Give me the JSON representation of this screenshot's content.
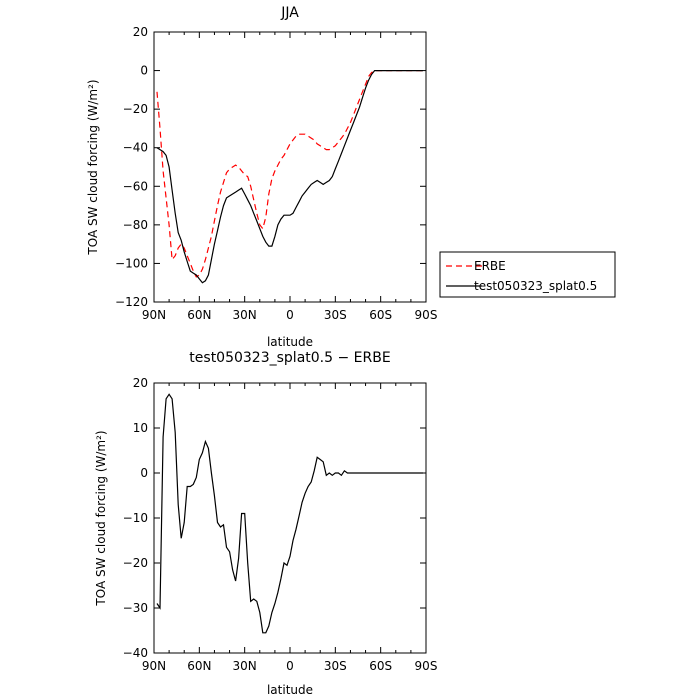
{
  "chart_data": [
    {
      "type": "line",
      "title": "JJA",
      "xlabel": "latitude",
      "ylabel": "TOA SW cloud forcing (W/m²)",
      "xlim": [
        90,
        -90
      ],
      "ylim": [
        -120,
        20
      ],
      "xticks": [
        90,
        60,
        30,
        0,
        -30,
        -60,
        -90
      ],
      "xtick_labels": [
        "90N",
        "60N",
        "30N",
        "0",
        "30S",
        "60S",
        "90S"
      ],
      "yticks": [
        -120,
        -100,
        -80,
        -60,
        -40,
        -20,
        0,
        20
      ],
      "ytick_labels": [
        "−120",
        "−100",
        "−80",
        "−60",
        "−40",
        "−20",
        "0",
        "20"
      ],
      "legend": {
        "placement": "right"
      },
      "series": [
        {
          "name": "ERBE",
          "color": "#ff0000",
          "dash": true,
          "x": [
            88,
            86,
            84,
            82,
            80,
            78,
            76,
            74,
            72,
            70,
            68,
            66,
            64,
            62,
            60,
            58,
            56,
            54,
            52,
            50,
            48,
            46,
            44,
            42,
            40,
            38,
            36,
            34,
            32,
            30,
            28,
            26,
            24,
            22,
            20,
            18,
            16,
            14,
            12,
            10,
            8,
            6,
            4,
            2,
            0,
            -2,
            -4,
            -6,
            -8,
            -10,
            -12,
            -14,
            -16,
            -18,
            -20,
            -22,
            -24,
            -26,
            -28,
            -30,
            -32,
            -34,
            -36,
            -38,
            -40,
            -42,
            -44,
            -46,
            -48,
            -50,
            -52,
            -54,
            -56,
            -58,
            -60,
            -62,
            -64,
            -66,
            -68,
            -70,
            -72,
            -74,
            -76,
            -78,
            -80,
            -82,
            -84,
            -86,
            -88
          ],
          "values": [
            -11,
            -30,
            -52,
            -66,
            -80,
            -98,
            -96,
            -92,
            -90,
            -92,
            -96,
            -100,
            -104,
            -107,
            -106,
            -103,
            -98,
            -92,
            -86,
            -78,
            -70,
            -63,
            -58,
            -53,
            -51,
            -50,
            -49,
            -50,
            -52,
            -54,
            -55,
            -60,
            -67,
            -74,
            -80,
            -82,
            -76,
            -64,
            -56,
            -52,
            -49,
            -46,
            -44,
            -41,
            -38,
            -36,
            -34,
            -33,
            -33,
            -33,
            -34,
            -35,
            -36,
            -38,
            -39,
            -40,
            -41,
            -41,
            -40,
            -39,
            -37,
            -35,
            -33,
            -30,
            -27,
            -23,
            -19,
            -15,
            -11,
            -7,
            -3,
            -1,
            0,
            0,
            0,
            0,
            0,
            0,
            0,
            0,
            0,
            0,
            0,
            0,
            0,
            0,
            0,
            0,
            0
          ]
        },
        {
          "name": "test050323_splat0.5",
          "color": "#000000",
          "dash": false,
          "x": [
            88,
            86,
            84,
            82,
            80,
            78,
            76,
            74,
            72,
            70,
            68,
            66,
            64,
            62,
            60,
            58,
            56,
            54,
            52,
            50,
            48,
            46,
            44,
            42,
            40,
            38,
            36,
            34,
            32,
            30,
            28,
            26,
            24,
            22,
            20,
            18,
            16,
            14,
            12,
            10,
            8,
            6,
            4,
            2,
            0,
            -2,
            -4,
            -6,
            -8,
            -10,
            -12,
            -14,
            -16,
            -18,
            -20,
            -22,
            -24,
            -26,
            -28,
            -30,
            -32,
            -34,
            -36,
            -38,
            -40,
            -42,
            -44,
            -46,
            -48,
            -50,
            -52,
            -54,
            -56,
            -58,
            -60,
            -62,
            -64,
            -66,
            -68,
            -70,
            -72,
            -74,
            -76,
            -78,
            -80,
            -82,
            -84,
            -86,
            -88
          ],
          "values": [
            -40,
            -41,
            -42,
            -44,
            -50,
            -62,
            -74,
            -84,
            -88,
            -94,
            -99,
            -104,
            -105,
            -106,
            -108,
            -110,
            -109,
            -106,
            -98,
            -90,
            -83,
            -76,
            -70,
            -66,
            -65,
            -64,
            -63,
            -62,
            -61,
            -64,
            -67,
            -70,
            -74,
            -78,
            -82,
            -86,
            -89,
            -91,
            -91,
            -86,
            -80,
            -77,
            -75,
            -75,
            -75,
            -74,
            -71,
            -68,
            -65,
            -63,
            -61,
            -59,
            -58,
            -57,
            -58,
            -59,
            -58,
            -57,
            -55,
            -51,
            -47,
            -43,
            -39,
            -35,
            -31,
            -27,
            -23,
            -19,
            -14,
            -9,
            -5,
            -2,
            0,
            0,
            0,
            0,
            0,
            0,
            0,
            0,
            0,
            0,
            0,
            0,
            0,
            0,
            0,
            0,
            0
          ]
        }
      ]
    },
    {
      "type": "line",
      "title": "test050323_splat0.5 − ERBE",
      "xlabel": "latitude",
      "ylabel": "TOA SW cloud forcing (W/m²)",
      "xlim": [
        90,
        -90
      ],
      "ylim": [
        -40,
        20
      ],
      "xticks": [
        90,
        60,
        30,
        0,
        -30,
        -60,
        -90
      ],
      "xtick_labels": [
        "90N",
        "60N",
        "30N",
        "0",
        "30S",
        "60S",
        "90S"
      ],
      "yticks": [
        -40,
        -30,
        -20,
        -10,
        0,
        10,
        20
      ],
      "ytick_labels": [
        "−40",
        "−30",
        "−20",
        "−10",
        "0",
        "10",
        "20"
      ],
      "series": [
        {
          "color": "#000000",
          "dash": false,
          "x": [
            88,
            86,
            84,
            82,
            80,
            78,
            76,
            74,
            72,
            70,
            68,
            66,
            64,
            62,
            60,
            58,
            56,
            54,
            52,
            50,
            48,
            46,
            44,
            42,
            40,
            38,
            36,
            34,
            32,
            30,
            28,
            26,
            24,
            22,
            20,
            18,
            16,
            14,
            12,
            10,
            8,
            6,
            4,
            2,
            0,
            -2,
            -4,
            -6,
            -8,
            -10,
            -12,
            -14,
            -16,
            -18,
            -20,
            -22,
            -24,
            -26,
            -28,
            -30,
            -32,
            -34,
            -36,
            -38,
            -40,
            -42,
            -44,
            -46,
            -48,
            -50,
            -52,
            -54,
            -56,
            -58,
            -60,
            -62,
            -64,
            -66,
            -68,
            -70,
            -72,
            -74,
            -76,
            -78,
            -80,
            -82,
            -84,
            -86,
            -88
          ],
          "values": [
            -29,
            -30,
            8,
            16.5,
            17.5,
            16.5,
            9,
            -7,
            -14.5,
            -11,
            -3,
            -3,
            -2.5,
            -1,
            3,
            4.5,
            7,
            5.5,
            0,
            -5,
            -11,
            -12,
            -11.5,
            -16.5,
            -17.5,
            -21.5,
            -24,
            -19,
            -9,
            -9,
            -20,
            -28.5,
            -28,
            -28.5,
            -31,
            -35.5,
            -35.5,
            -34,
            -31,
            -29,
            -26.5,
            -23.5,
            -20,
            -20.5,
            -18.5,
            -15,
            -12.5,
            -9.5,
            -6.5,
            -4.5,
            -3,
            -2,
            0.5,
            3.5,
            3,
            2.5,
            -0.5,
            0,
            -0.5,
            0,
            0,
            -0.5,
            0.5,
            0,
            0,
            0,
            0,
            0,
            0,
            0,
            0,
            0,
            0,
            0,
            0,
            0,
            0,
            0,
            0,
            0,
            0,
            0,
            0,
            0,
            0,
            0,
            0,
            0,
            0
          ]
        }
      ]
    }
  ]
}
